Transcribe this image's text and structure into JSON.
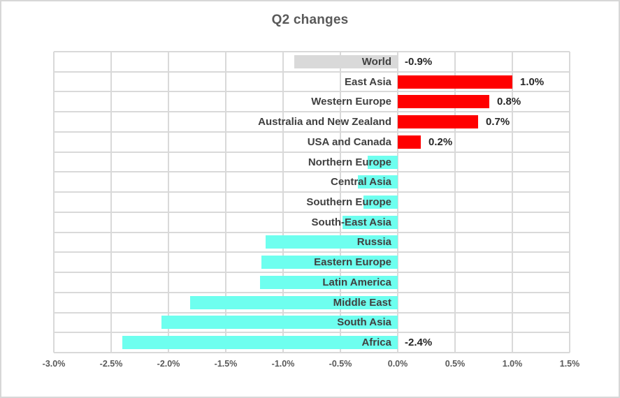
{
  "title": "Q2 changes",
  "colors": {
    "red": "#ff0000",
    "cyan": "#6effef",
    "gray": "#d9d9d9",
    "gridline": "#d9d9d9",
    "title_text": "#595959",
    "category_text": "#404040",
    "value_text": "#262626",
    "tick_text": "#595959"
  },
  "chart_data": {
    "type": "bar",
    "orientation": "horizontal",
    "title": "Q2 changes",
    "xlabel": "",
    "ylabel": "",
    "xlim": [
      -3.0,
      1.5
    ],
    "grid": true,
    "x_ticks": [
      "-3.0%",
      "-2.5%",
      "-2.0%",
      "-1.5%",
      "-1.0%",
      "-0.5%",
      "0.0%",
      "0.5%",
      "1.0%",
      "1.5%"
    ],
    "categories": [
      "World",
      "East Asia",
      "Western Europe",
      "Australia and New Zealand",
      "USA and Canada",
      "Northern Europe",
      "Central Asia",
      "Southern Europe",
      "South-East Asia",
      "Russia",
      "Eastern Europe",
      "Latin America",
      "Middle East",
      "South Asia",
      "Africa"
    ],
    "values": [
      -0.9,
      1.0,
      0.8,
      0.7,
      0.2,
      -0.26,
      -0.35,
      -0.3,
      -0.48,
      -1.15,
      -1.19,
      -1.2,
      -1.81,
      -2.06,
      -2.4
    ],
    "bar_color_keys": [
      "gray",
      "red",
      "red",
      "red",
      "red",
      "cyan",
      "cyan",
      "cyan",
      "cyan",
      "cyan",
      "cyan",
      "cyan",
      "cyan",
      "cyan",
      "cyan"
    ],
    "data_labels": [
      "-0.9%",
      "1.0%",
      "0.8%",
      "0.7%",
      "0.2%",
      "",
      "",
      "",
      "",
      "",
      "",
      "",
      "",
      "",
      "-2.4%"
    ]
  }
}
